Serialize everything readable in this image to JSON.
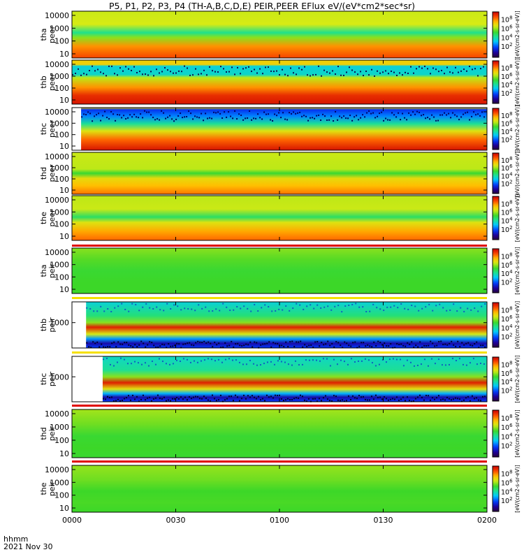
{
  "chart_data": {
    "type": "heatmap",
    "title": "P5, P1, P2, P3, P4 (TH-A,B,C,D,E) PEIR,PEER EFlux eV/(eV*cm2*sec*sr)",
    "x_ticks": [
      "0000",
      "0030",
      "0100",
      "0130",
      "0200"
    ],
    "x_range": [
      "0000",
      "0200"
    ],
    "x_label_line1": "hhmm",
    "x_label_line2": "2021 Nov 30",
    "colorbar_ticks": [
      "10^2",
      "10^4",
      "10^6",
      "10^8"
    ],
    "colorbar_label": "[eV/(cm2-s-sr-eV)]",
    "panels": [
      {
        "probe": "tha",
        "species": "peer",
        "yticks": [
          "10000",
          "1000",
          "100",
          "10"
        ],
        "log_y": true
      },
      {
        "probe": "thb",
        "species": "peer",
        "yticks": [
          "10000",
          "1000",
          "100",
          "10"
        ],
        "log_y": true
      },
      {
        "probe": "thc",
        "species": "peer",
        "yticks": [
          "10000",
          "1000",
          "100",
          "10"
        ],
        "log_y": true
      },
      {
        "probe": "thd",
        "species": "peer",
        "yticks": [
          "10000",
          "1000",
          "100",
          "10"
        ],
        "log_y": true
      },
      {
        "probe": "the",
        "species": "peer",
        "yticks": [
          "10000",
          "1000",
          "100",
          "10"
        ],
        "log_y": true
      },
      {
        "probe": "tha",
        "species": "peir",
        "yticks": [
          "10000",
          "1000",
          "100",
          "10"
        ],
        "log_y": true
      },
      {
        "probe": "thb",
        "species": "peir",
        "yticks": [
          "1000"
        ],
        "log_y": true
      },
      {
        "probe": "thc",
        "species": "peir",
        "yticks": [
          "1000"
        ],
        "log_y": true
      },
      {
        "probe": "thd",
        "species": "peir",
        "yticks": [
          "10000",
          "1000",
          "100",
          "10"
        ],
        "log_y": true
      },
      {
        "probe": "the",
        "species": "peir",
        "yticks": [
          "10000",
          "1000",
          "100",
          "10"
        ],
        "log_y": true
      }
    ]
  }
}
